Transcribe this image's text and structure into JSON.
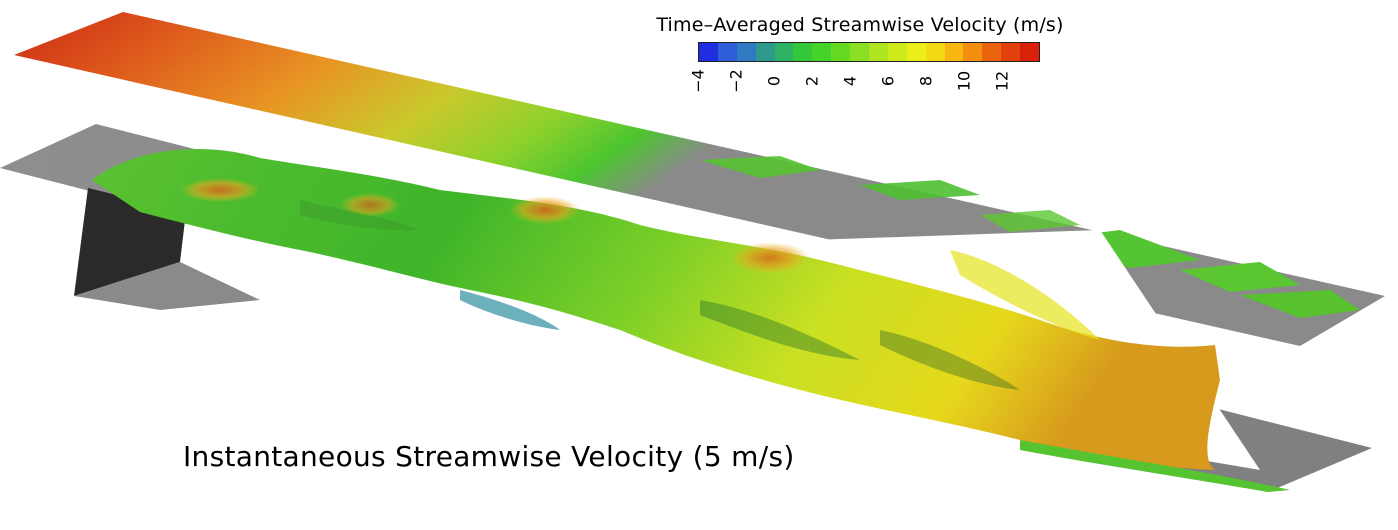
{
  "colorbar": {
    "title": "Time–Averaged Streamwise Velocity (m/s)",
    "min": -4,
    "max": 14,
    "ticks": [
      "−4",
      "−2",
      "0",
      "2",
      "4",
      "6",
      "8",
      "10",
      "12"
    ],
    "tick_values": [
      -4,
      -2,
      0,
      2,
      4,
      6,
      8,
      10,
      12
    ],
    "colors": [
      "#1f2fe0",
      "#2f5cd8",
      "#2f7ac0",
      "#2e9a8c",
      "#2fb466",
      "#33c83a",
      "#45d22a",
      "#66d924",
      "#8ade23",
      "#aee520",
      "#cfeb1e",
      "#ecee1a",
      "#f6d915",
      "#f7b612",
      "#f28f10",
      "#ea650e",
      "#e2400c",
      "#d8200b"
    ]
  },
  "caption": "Instantaneous Streamwise Velocity (5 m/s)"
}
